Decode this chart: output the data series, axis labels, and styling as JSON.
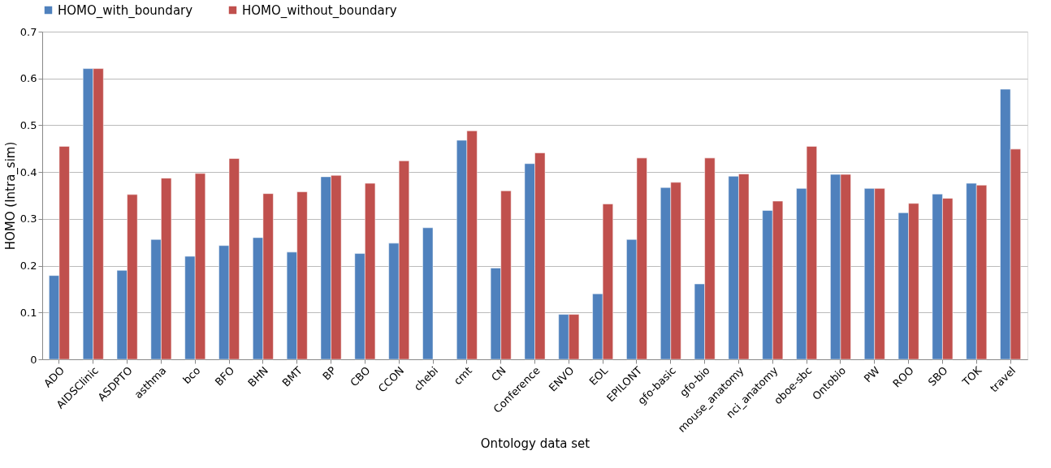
{
  "chart_data": {
    "type": "bar",
    "xlabel": "Ontology data set",
    "ylabel": "HOMO (Intra_sim)",
    "categories": [
      "ADO",
      "AIDSClinic",
      "ASDPTO",
      "asthma",
      "bco",
      "BFO",
      "BHN",
      "BMT",
      "BP",
      "CBO",
      "CCON",
      "chebi",
      "cmt",
      "CN",
      "Conference",
      "ENVO",
      "EOL",
      "EPILONT",
      "gfo-basic",
      "gfo-bio",
      "mouse_anatomy",
      "nci_anatomy",
      "oboe-sbc",
      "Ontobio",
      "PW",
      "ROO",
      "SBO",
      "TOK",
      "travel"
    ],
    "series": [
      {
        "name": "HOMO_with_boundary",
        "color": "#4f81bd",
        "values": [
          0.179,
          0.621,
          0.19,
          0.256,
          0.22,
          0.243,
          0.26,
          0.229,
          0.39,
          0.226,
          0.248,
          0.281,
          0.468,
          0.195,
          0.418,
          0.096,
          0.14,
          0.256,
          0.367,
          0.161,
          0.391,
          0.318,
          0.365,
          0.395,
          0.365,
          0.313,
          0.353,
          0.376,
          0.577
        ]
      },
      {
        "name": "HOMO_without_boundary",
        "color": "#c0504d",
        "values": [
          0.455,
          0.621,
          0.352,
          0.387,
          0.397,
          0.429,
          0.354,
          0.358,
          0.393,
          0.376,
          0.424,
          null,
          0.488,
          0.36,
          0.441,
          0.096,
          0.332,
          0.43,
          0.378,
          0.43,
          0.396,
          0.338,
          0.455,
          0.395,
          0.365,
          0.333,
          0.344,
          0.372,
          0.449
        ]
      }
    ],
    "ylim": [
      0,
      0.7
    ],
    "yticks": [
      0,
      0.1,
      0.2,
      0.3,
      0.4,
      0.5,
      0.6,
      0.7
    ],
    "grid": "y",
    "legend": "top"
  }
}
